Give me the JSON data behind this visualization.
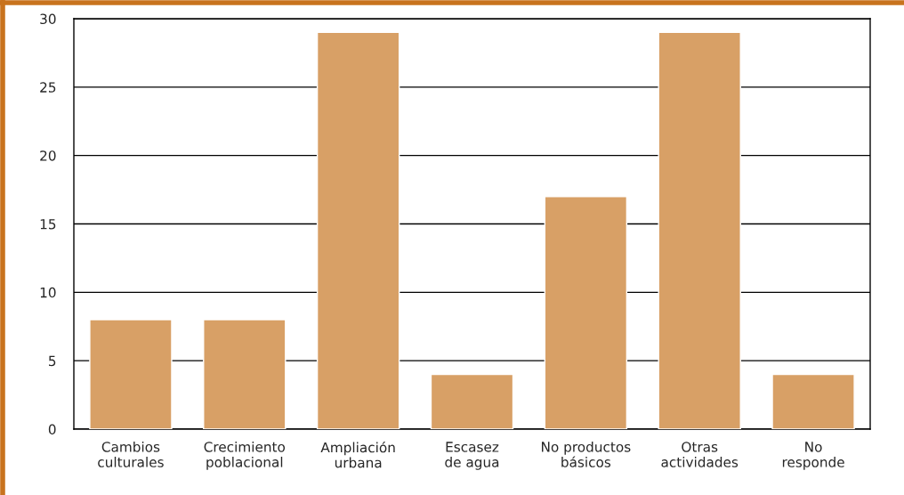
{
  "chart_data": {
    "type": "bar",
    "categories": [
      "Cambios\nculturales",
      "Crecimiento\npoblacional",
      "Ampliación\nurbana",
      "Escasez\nde agua",
      "No productos\nbásicos",
      "Otras\nactividades",
      "No\nresponde"
    ],
    "values": [
      8,
      8,
      29,
      4,
      17,
      29,
      4
    ],
    "color": "#d8a066",
    "ylim": [
      0,
      30
    ],
    "yticks": [
      0,
      5,
      10,
      15,
      20,
      25,
      30
    ],
    "grid": "y"
  }
}
